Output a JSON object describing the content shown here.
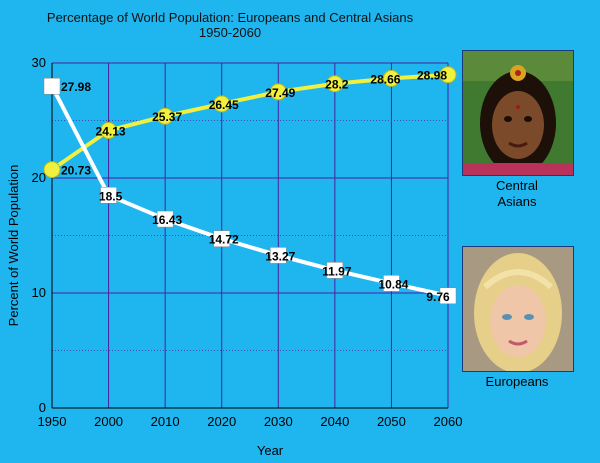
{
  "chart_data": {
    "type": "line",
    "title": "Percentage of World Population: Europeans and Central Asians",
    "subtitle": "1950-2060",
    "xlabel": "Year",
    "ylabel": "Percent of World Population",
    "categories": [
      "1950",
      "2000",
      "2010",
      "2020",
      "2030",
      "2040",
      "2050",
      "2060"
    ],
    "yticks": [
      "0",
      "10",
      "20",
      "30"
    ],
    "ylim": [
      0,
      30
    ],
    "grid": true,
    "series": [
      {
        "name": "Central Asians",
        "color": "#f0f040",
        "marker": "circle",
        "values": [
          20.73,
          24.13,
          25.37,
          26.45,
          27.49,
          28.2,
          28.66,
          28.98
        ],
        "labels": [
          "20.73",
          "24.13",
          "25.37",
          "26.45",
          "27.49",
          "28.2",
          "28.66",
          "28.98"
        ]
      },
      {
        "name": "Europeans",
        "color": "#ffffff",
        "marker": "square",
        "values": [
          27.98,
          18.5,
          16.43,
          14.72,
          13.27,
          11.97,
          10.84,
          9.76
        ],
        "labels": [
          "27.98",
          "18.5",
          "16.43",
          "14.72",
          "13.27",
          "11.97",
          "10.84",
          "9.76"
        ]
      }
    ],
    "colors": {
      "plot_bg": "#1fb6f0",
      "grid": "#4b1fa0",
      "axis": "#000000"
    }
  },
  "legend": {
    "central_asians": "Central\nAsians",
    "europeans": "Europeans"
  }
}
